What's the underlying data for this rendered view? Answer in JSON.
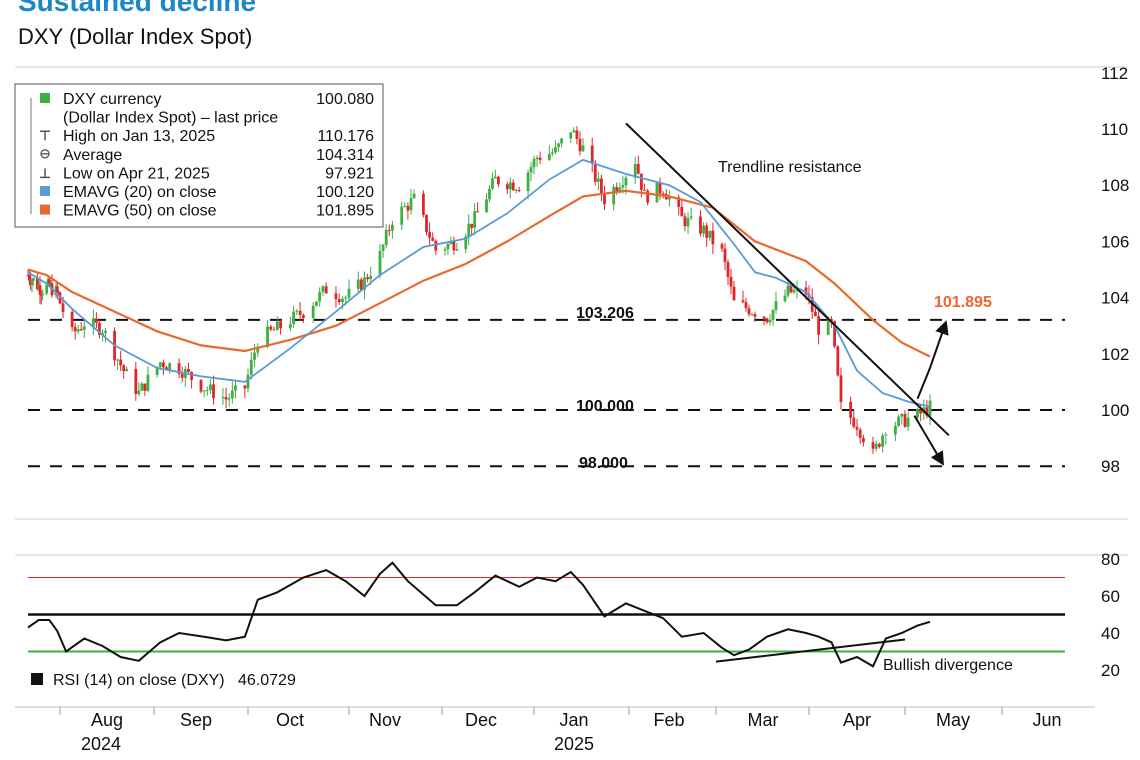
{
  "header": {
    "title": "Sustained decline",
    "subtitle": "DXY (Dollar Index Spot)"
  },
  "legend": {
    "rows": [
      {
        "label": "DXY currency",
        "value": "100.080",
        "color": "#3cb043",
        "marker": "square"
      },
      {
        "label": "(Dollar Index Spot) – last price",
        "value": "",
        "color": "",
        "marker": "none"
      },
      {
        "label": "High on Jan 13, 2025",
        "value": "110.176",
        "color": "#555555",
        "marker": "high"
      },
      {
        "label": "Average",
        "value": "104.314",
        "color": "#555555",
        "marker": "avg"
      },
      {
        "label": "Low on Apr 21, 2025",
        "value": "97.921",
        "color": "#555555",
        "marker": "low"
      },
      {
        "label": "EMAVG (20) on close",
        "value": "100.120",
        "color": "#5b9bd5",
        "marker": "square"
      },
      {
        "label": "EMAVG (50) on close",
        "value": "101.895",
        "color": "#e8692d",
        "marker": "square"
      }
    ]
  },
  "annotations": {
    "trendline": "Trendline resistance",
    "level_103": "103.206",
    "level_100": "100.000",
    "level_98": "98.000",
    "ema50_value": "101.895",
    "bullish": "Bullish divergence"
  },
  "rsi_legend": {
    "label": "RSI (14) on close (DXY)",
    "value": "46.0729"
  },
  "colors": {
    "up": "#3cb043",
    "down": "#e0262b",
    "ema20": "#5b9bd5",
    "ema50": "#e8692d",
    "ema50_label": "#e8692d",
    "rsi_overbought": "#e0262b",
    "rsi_oversold": "#3cb043"
  },
  "chart_data": [
    {
      "type": "candlestick",
      "title": "DXY (Dollar Index Spot)",
      "y_axis": {
        "ticks": [
          98,
          100,
          102,
          104,
          106,
          108,
          110,
          112
        ],
        "ylim": [
          97.6,
          112
        ]
      },
      "x_axis": {
        "month_labels": [
          "Aug",
          "Sep",
          "Oct",
          "Nov",
          "Dec",
          "Jan",
          "Feb",
          "Mar",
          "Apr",
          "May",
          "Jun"
        ],
        "year_labels": [
          "2024",
          "2025"
        ],
        "range": [
          "2024-07-08",
          "2025-06-15"
        ]
      },
      "horizontal_levels": [
        103.206,
        100.0,
        98.0
      ],
      "price_path": [
        [
          "2024-07-08",
          104.8
        ],
        [
          "2024-07-18",
          104.3
        ],
        [
          "2024-07-24",
          104.4
        ],
        [
          "2024-07-31",
          104.1
        ],
        [
          "2024-08-05",
          102.7
        ],
        [
          "2024-08-09",
          103.1
        ],
        [
          "2024-08-15",
          102.9
        ],
        [
          "2024-08-22",
          101.4
        ],
        [
          "2024-08-27",
          100.6
        ],
        [
          "2024-09-03",
          101.7
        ],
        [
          "2024-09-09",
          101.5
        ],
        [
          "2024-09-17",
          100.8
        ],
        [
          "2024-09-24",
          100.4
        ],
        [
          "2024-09-30",
          100.8
        ],
        [
          "2024-10-04",
          102.5
        ],
        [
          "2024-10-10",
          102.9
        ],
        [
          "2024-10-18",
          103.5
        ],
        [
          "2024-10-25",
          104.3
        ],
        [
          "2024-10-31",
          104.0
        ],
        [
          "2024-11-06",
          104.6
        ],
        [
          "2024-11-11",
          105.5
        ],
        [
          "2024-11-15",
          106.8
        ],
        [
          "2024-11-22",
          107.5
        ],
        [
          "2024-11-29",
          105.7
        ],
        [
          "2024-12-06",
          106.0
        ],
        [
          "2024-12-12",
          106.8
        ],
        [
          "2024-12-19",
          108.2
        ],
        [
          "2024-12-27",
          108.0
        ],
        [
          "2025-01-02",
          109.0
        ],
        [
          "2025-01-08",
          109.2
        ],
        [
          "2025-01-13",
          110.0
        ],
        [
          "2025-01-17",
          109.3
        ],
        [
          "2025-01-24",
          107.5
        ],
        [
          "2025-01-31",
          108.4
        ],
        [
          "2025-02-03",
          108.9
        ],
        [
          "2025-02-06",
          107.6
        ],
        [
          "2025-02-12",
          107.9
        ],
        [
          "2025-02-18",
          106.8
        ],
        [
          "2025-02-25",
          106.4
        ],
        [
          "2025-03-03",
          105.6
        ],
        [
          "2025-03-07",
          103.8
        ],
        [
          "2025-03-12",
          103.6
        ],
        [
          "2025-03-18",
          103.3
        ],
        [
          "2025-03-25",
          104.2
        ],
        [
          "2025-03-31",
          104.2
        ],
        [
          "2025-04-04",
          102.9
        ],
        [
          "2025-04-08",
          103.0
        ],
        [
          "2025-04-11",
          100.1
        ],
        [
          "2025-04-16",
          99.5
        ],
        [
          "2025-04-21",
          98.4
        ],
        [
          "2025-04-25",
          99.4
        ],
        [
          "2025-04-30",
          99.6
        ],
        [
          "2025-05-05",
          99.8
        ],
        [
          "2025-05-09",
          100.1
        ]
      ],
      "ema20_path": [
        [
          "2024-07-08",
          104.9
        ],
        [
          "2024-07-22",
          104.5
        ],
        [
          "2024-08-05",
          103.6
        ],
        [
          "2024-08-19",
          102.3
        ],
        [
          "2024-09-02",
          101.5
        ],
        [
          "2024-09-16",
          101.2
        ],
        [
          "2024-09-30",
          101.0
        ],
        [
          "2024-10-14",
          102.2
        ],
        [
          "2024-10-28",
          103.5
        ],
        [
          "2024-11-11",
          104.8
        ],
        [
          "2024-11-25",
          105.8
        ],
        [
          "2024-12-09",
          106.1
        ],
        [
          "2024-12-23",
          107.0
        ],
        [
          "2025-01-06",
          108.2
        ],
        [
          "2025-01-17",
          108.9
        ],
        [
          "2025-01-31",
          108.4
        ],
        [
          "2025-02-14",
          108.0
        ],
        [
          "2025-02-24",
          107.4
        ],
        [
          "2025-03-07",
          105.9
        ],
        [
          "2025-03-14",
          104.9
        ],
        [
          "2025-03-21",
          104.7
        ],
        [
          "2025-03-31",
          104.2
        ],
        [
          "2025-04-09",
          103.0
        ],
        [
          "2025-04-16",
          101.4
        ],
        [
          "2025-04-24",
          100.6
        ],
        [
          "2025-05-02",
          100.3
        ],
        [
          "2025-05-09",
          100.12
        ]
      ],
      "ema50_path": [
        [
          "2024-07-08",
          105.0
        ],
        [
          "2024-07-22",
          104.8
        ],
        [
          "2024-08-05",
          104.2
        ],
        [
          "2024-08-19",
          103.5
        ],
        [
          "2024-09-02",
          102.8
        ],
        [
          "2024-09-16",
          102.3
        ],
        [
          "2024-09-30",
          102.1
        ],
        [
          "2024-10-14",
          102.5
        ],
        [
          "2024-10-28",
          103.0
        ],
        [
          "2024-11-11",
          103.8
        ],
        [
          "2024-11-25",
          104.6
        ],
        [
          "2024-12-09",
          105.2
        ],
        [
          "2024-12-23",
          106.0
        ],
        [
          "2025-01-06",
          106.9
        ],
        [
          "2025-01-17",
          107.6
        ],
        [
          "2025-01-31",
          107.8
        ],
        [
          "2025-02-14",
          107.6
        ],
        [
          "2025-02-28",
          107.2
        ],
        [
          "2025-03-14",
          106.0
        ],
        [
          "2025-03-31",
          105.3
        ],
        [
          "2025-04-09",
          104.5
        ],
        [
          "2025-04-21",
          103.2
        ],
        [
          "2025-04-30",
          102.4
        ],
        [
          "2025-05-09",
          101.9
        ]
      ],
      "trendline": [
        [
          "2025-01-31",
          110.2
        ],
        [
          "2025-05-15",
          99.1
        ]
      ],
      "projection_arrows": [
        {
          "from": [
            "2025-05-05",
            100.4
          ],
          "to": [
            "2025-05-09",
            101.5
          ]
        },
        {
          "from": [
            "2025-05-09",
            101.5
          ],
          "to": [
            "2025-05-14",
            103.1
          ]
        },
        {
          "from": [
            "2025-05-04",
            99.8
          ],
          "to": [
            "2025-05-13",
            98.1
          ]
        }
      ]
    },
    {
      "type": "line",
      "title": "RSI (14) on close (DXY)",
      "y_axis": {
        "ticks": [
          20,
          40,
          60,
          80
        ],
        "ylim": [
          11,
          86
        ]
      },
      "reference_levels": [
        70,
        50,
        30
      ],
      "rsi_path": [
        [
          "2024-07-08",
          43
        ],
        [
          "2024-07-16",
          47
        ],
        [
          "2024-07-24",
          47
        ],
        [
          "2024-07-30",
          41
        ],
        [
          "2024-08-03",
          30
        ],
        [
          "2024-08-09",
          37
        ],
        [
          "2024-08-15",
          33
        ],
        [
          "2024-08-21",
          27
        ],
        [
          "2024-08-27",
          25
        ],
        [
          "2024-09-03",
          35
        ],
        [
          "2024-09-09",
          40
        ],
        [
          "2024-09-17",
          38
        ],
        [
          "2024-09-24",
          36
        ],
        [
          "2024-09-30",
          38
        ],
        [
          "2024-10-04",
          58
        ],
        [
          "2024-10-10",
          62
        ],
        [
          "2024-10-18",
          70
        ],
        [
          "2024-10-25",
          74
        ],
        [
          "2024-10-31",
          68
        ],
        [
          "2024-11-06",
          60
        ],
        [
          "2024-11-11",
          72
        ],
        [
          "2024-11-15",
          78
        ],
        [
          "2024-11-20",
          68
        ],
        [
          "2024-11-29",
          55
        ],
        [
          "2024-12-06",
          55
        ],
        [
          "2024-12-12",
          62
        ],
        [
          "2024-12-19",
          71
        ],
        [
          "2024-12-27",
          65
        ],
        [
          "2025-01-02",
          70
        ],
        [
          "2025-01-08",
          68
        ],
        [
          "2025-01-13",
          73
        ],
        [
          "2025-01-17",
          66
        ],
        [
          "2025-01-24",
          49
        ],
        [
          "2025-01-31",
          56
        ],
        [
          "2025-02-06",
          52
        ],
        [
          "2025-02-12",
          48
        ],
        [
          "2025-02-18",
          38
        ],
        [
          "2025-02-25",
          40
        ],
        [
          "2025-03-03",
          32
        ],
        [
          "2025-03-07",
          28
        ],
        [
          "2025-03-12",
          31
        ],
        [
          "2025-03-18",
          38
        ],
        [
          "2025-03-25",
          42
        ],
        [
          "2025-03-31",
          40
        ],
        [
          "2025-04-04",
          38
        ],
        [
          "2025-04-08",
          35
        ],
        [
          "2025-04-11",
          24
        ],
        [
          "2025-04-16",
          27
        ],
        [
          "2025-04-21",
          22
        ],
        [
          "2025-04-25",
          37
        ],
        [
          "2025-04-30",
          40
        ],
        [
          "2025-05-05",
          44
        ],
        [
          "2025-05-09",
          46.07
        ]
      ],
      "divergence_line": [
        [
          "2025-03-01",
          24.5
        ],
        [
          "2025-05-01",
          36.5
        ]
      ]
    }
  ]
}
